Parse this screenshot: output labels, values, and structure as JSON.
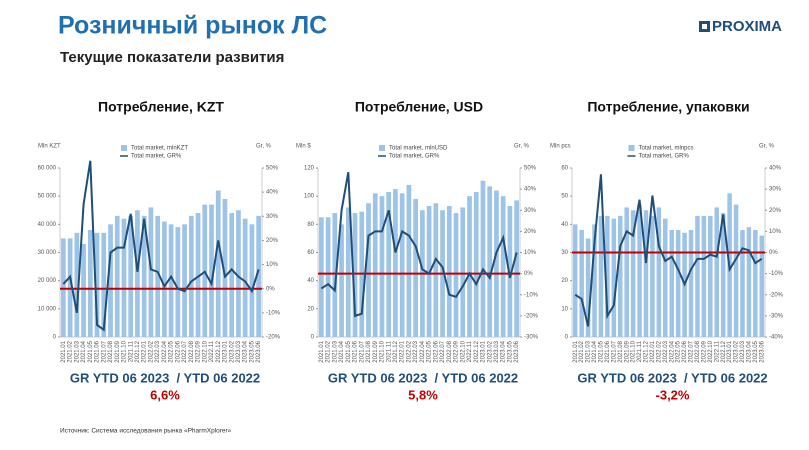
{
  "title": "Розничный рынок ЛС",
  "subtitle": "Текущие показатели развития",
  "logo": "PROXIMA",
  "source": "Источник: Система исследования рынка «PharmXplorer»",
  "chart_data": [
    {
      "type": "bar",
      "title": "Потребление, KZT",
      "y_label": "Mln KZT",
      "y2_label": "Gr, %",
      "categories": [
        "2021.01",
        "2021.02",
        "2021.03",
        "2021.04",
        "2021.05",
        "2021.06",
        "2021.07",
        "2021.08",
        "2021.09",
        "2021.10",
        "2021.11",
        "2021.12",
        "2022.01",
        "2022.02",
        "2022.03",
        "2022.04",
        "2022.05",
        "2022.06",
        "2022.07",
        "2022.08",
        "2022.09",
        "2022.10",
        "2022.11",
        "2022.12",
        "2023.01",
        "2023.02",
        "2023.03",
        "2023.04",
        "2023.05",
        "2023.06"
      ],
      "series": [
        {
          "name": "Total market, mlnKZT",
          "type": "bar",
          "color": "#9dc3e6",
          "values": [
            35000,
            35000,
            37000,
            33000,
            38000,
            37000,
            37000,
            40000,
            43000,
            42000,
            43000,
            45000,
            43000,
            46000,
            43000,
            41000,
            40000,
            39000,
            40000,
            43000,
            44000,
            47000,
            47000,
            52000,
            49000,
            44000,
            45000,
            42000,
            40000,
            43000
          ]
        },
        {
          "name": "Total market, GR%",
          "type": "line",
          "axis": "y2",
          "color": "#1f4e79",
          "values": [
            2,
            5,
            -10,
            35,
            53,
            -15,
            -17,
            15,
            17,
            17,
            31,
            7,
            29,
            8,
            7,
            1,
            5,
            0,
            -1,
            3,
            5,
            7,
            2,
            20,
            5,
            8,
            5,
            3,
            -1,
            8
          ]
        }
      ],
      "ylim": [
        0,
        60000
      ],
      "yticks": [
        0,
        {
          "value": 10000,
          "label": "10 000"
        },
        {
          "value": 20000,
          "label": "20 000"
        },
        {
          "value": 30000,
          "label": "30 000"
        },
        {
          "value": 40000,
          "label": "40 000"
        },
        {
          "value": 50000,
          "label": "50 000"
        },
        {
          "value": 60000,
          "label": "60 000"
        }
      ],
      "y2lim": [
        -20,
        50
      ],
      "y2ticks": [
        {
          "value": -20,
          "label": "-20%"
        },
        {
          "value": -10,
          "label": "-10%"
        },
        {
          "value": 0,
          "label": "0%"
        },
        {
          "value": 10,
          "label": "10%"
        },
        {
          "value": 20,
          "label": "20%"
        },
        {
          "value": 30,
          "label": "30%"
        },
        {
          "value": 40,
          "label": "40%"
        },
        {
          "value": 50,
          "label": "50%"
        }
      ],
      "reference_color": "#c00000",
      "annotations": [
        "GR YTD 06 2023  / YTD 06 2022",
        "6,6%"
      ]
    },
    {
      "type": "bar",
      "title": "Потребление, USD",
      "y_label": "Mln $",
      "y2_label": "Gr, %",
      "categories": [
        "2021.01",
        "2021.02",
        "2021.03",
        "2021.04",
        "2021.05",
        "2021.06",
        "2021.07",
        "2021.08",
        "2021.09",
        "2021.10",
        "2021.11",
        "2021.12",
        "2022.01",
        "2022.02",
        "2022.03",
        "2022.04",
        "2022.05",
        "2022.06",
        "2022.07",
        "2022.08",
        "2022.09",
        "2022.10",
        "2022.11",
        "2022.12",
        "2023.01",
        "2023.02",
        "2023.03",
        "2023.04",
        "2023.05",
        "2023.06"
      ],
      "series": [
        {
          "name": "Total market, mlnUSD",
          "type": "bar",
          "color": "#9dc3e6",
          "values": [
            85,
            85,
            88,
            80,
            92,
            88,
            89,
            95,
            102,
            100,
            103,
            105,
            102,
            108,
            98,
            90,
            93,
            95,
            90,
            93,
            88,
            92,
            100,
            103,
            111,
            107,
            104,
            100,
            93,
            97
          ]
        },
        {
          "name": "Total market, GR%",
          "type": "line",
          "axis": "y2",
          "color": "#1f4e79",
          "values": [
            -7,
            -5,
            -8,
            30,
            48,
            -20,
            -19,
            18,
            20,
            20,
            30,
            10,
            20,
            18,
            13,
            2,
            0,
            7,
            3,
            -10,
            -11,
            -6,
            0,
            -5,
            2,
            -2,
            10,
            17,
            -2,
            10
          ]
        }
      ],
      "ylim": [
        0,
        120
      ],
      "yticks": [
        0,
        20,
        40,
        60,
        80,
        100,
        120
      ],
      "y2lim": [
        -30,
        50
      ],
      "y2ticks": [
        {
          "value": -30,
          "label": "-30%"
        },
        {
          "value": -20,
          "label": "-20%"
        },
        {
          "value": -10,
          "label": "-10%"
        },
        {
          "value": 0,
          "label": "0%"
        },
        {
          "value": 10,
          "label": "10%"
        },
        {
          "value": 20,
          "label": "20%"
        },
        {
          "value": 30,
          "label": "30%"
        },
        {
          "value": 40,
          "label": "40%"
        },
        {
          "value": 50,
          "label": "50%"
        }
      ],
      "reference_color": "#c00000",
      "annotations": [
        "GR YTD 06 2023  / YTD 06 2022",
        "5,8%"
      ]
    },
    {
      "type": "bar",
      "title": "Потребление, упаковки",
      "y_label": "Mln pcs",
      "y2_label": "Gr, %",
      "categories": [
        "2021.01",
        "2021.02",
        "2021.03",
        "2021.04",
        "2021.05",
        "2021.06",
        "2021.07",
        "2021.08",
        "2021.09",
        "2021.10",
        "2021.11",
        "2021.12",
        "2022.01",
        "2022.02",
        "2022.03",
        "2022.04",
        "2022.05",
        "2022.06",
        "2022.07",
        "2022.08",
        "2022.09",
        "2022.10",
        "2022.11",
        "2022.12",
        "2023.01",
        "2023.02",
        "2023.03",
        "2023.04",
        "2023.05",
        "2023.06"
      ],
      "series": [
        {
          "name": "Total market, mlnpcs",
          "type": "bar",
          "color": "#9dc3e6",
          "values": [
            40,
            38,
            35,
            40,
            43,
            43,
            42,
            43,
            46,
            45,
            47,
            45,
            43,
            46,
            42,
            38,
            38,
            37,
            38,
            43,
            43,
            43,
            46,
            44,
            51,
            47,
            38,
            39,
            38,
            36
          ]
        },
        {
          "name": "Total market, GR%",
          "type": "line",
          "axis": "y2",
          "color": "#1f4e79",
          "values": [
            -20,
            -22,
            -35,
            5,
            37,
            -30,
            -25,
            3,
            10,
            8,
            25,
            -5,
            27,
            3,
            -4,
            -2,
            -8,
            -15,
            -8,
            -3,
            -3,
            -1,
            -2,
            18,
            -8,
            -3,
            2,
            1,
            -5,
            -3
          ]
        }
      ],
      "ylim": [
        0,
        60
      ],
      "yticks": [
        0,
        10,
        20,
        30,
        40,
        50,
        60
      ],
      "y2lim": [
        -40,
        40
      ],
      "y2ticks": [
        {
          "value": -40,
          "label": "-40%"
        },
        {
          "value": -30,
          "label": "-30%"
        },
        {
          "value": -20,
          "label": "-20%"
        },
        {
          "value": -10,
          "label": "-10%"
        },
        {
          "value": 0,
          "label": "0%"
        },
        {
          "value": 10,
          "label": "10%"
        },
        {
          "value": 20,
          "label": "20%"
        },
        {
          "value": 30,
          "label": "30%"
        },
        {
          "value": 40,
          "label": "40%"
        }
      ],
      "reference_color": "#c00000",
      "annotations": [
        "GR YTD 06 2023  / YTD 06 2022",
        "-3,2%"
      ]
    }
  ]
}
